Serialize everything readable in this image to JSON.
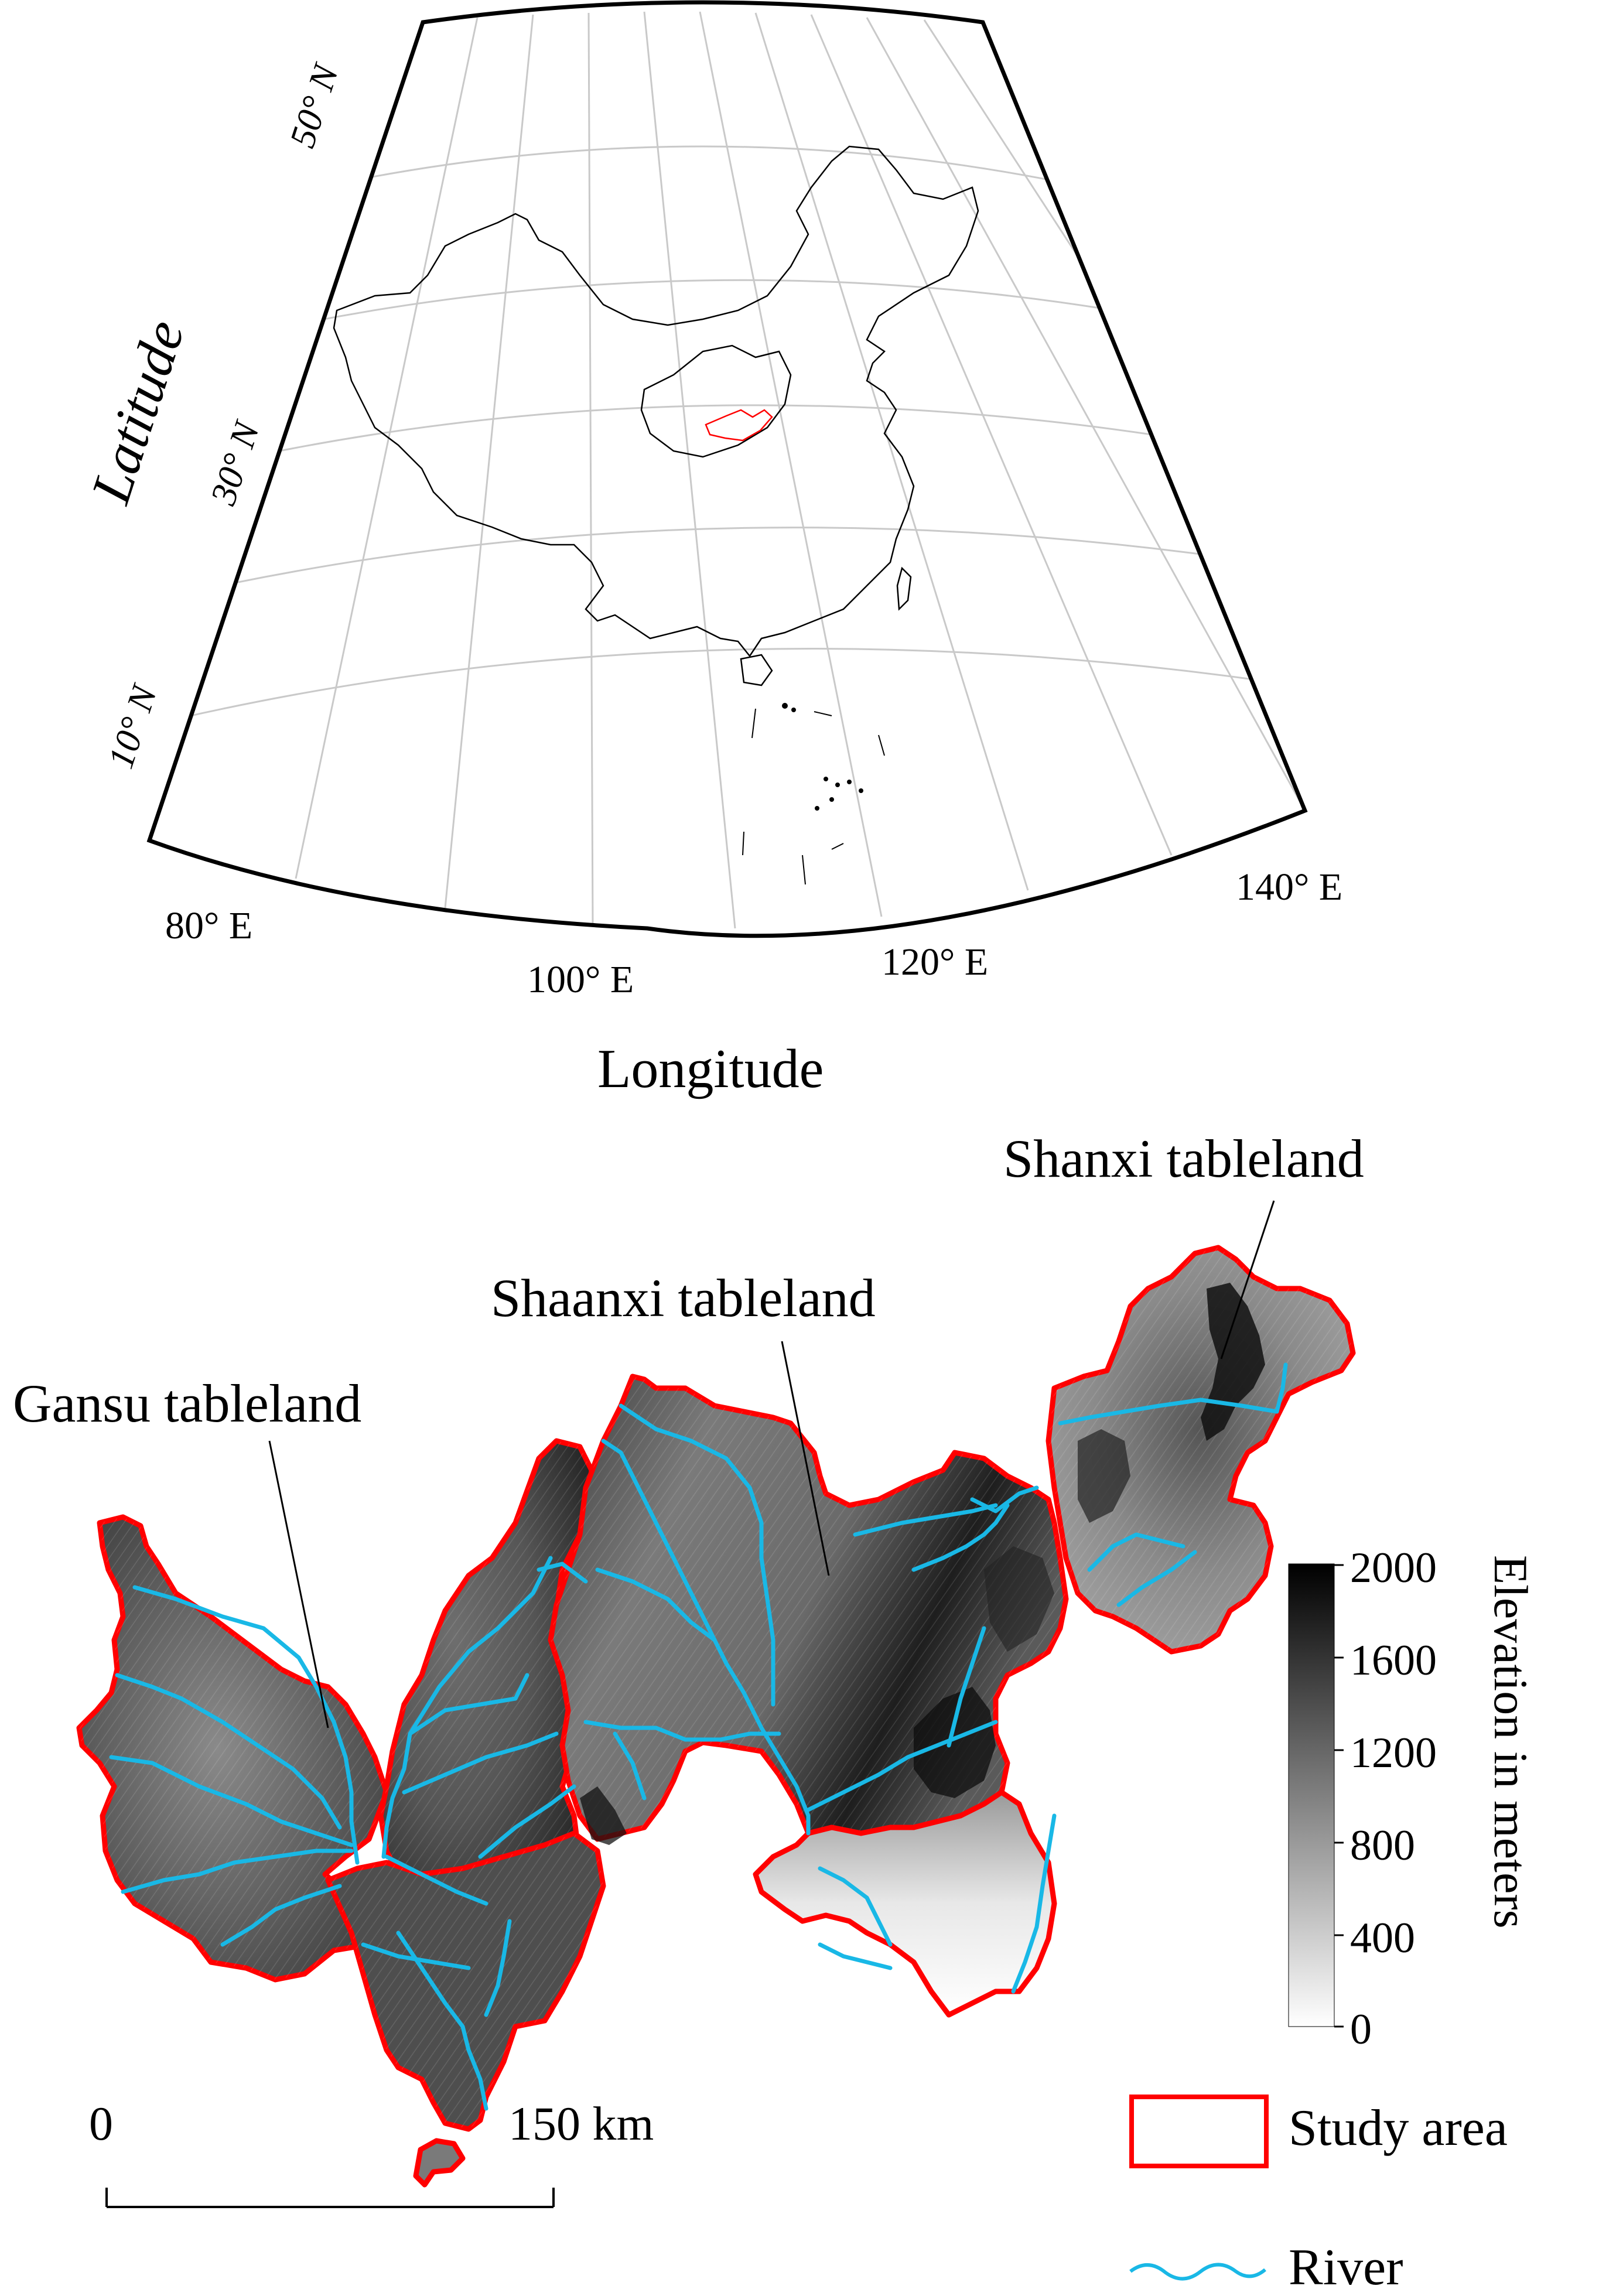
{
  "inset_map": {
    "axis_x_label": "Longitude",
    "axis_y_label": "Latitude",
    "lon_ticks": [
      "80° E",
      "100° E",
      "120° E",
      "140° E"
    ],
    "lat_ticks": [
      "10° N",
      "30° N",
      "50° N"
    ]
  },
  "study_map": {
    "regions": [
      {
        "name": "Gansu tableland"
      },
      {
        "name": "Shaanxi tableland"
      },
      {
        "name": "Shanxi tableland"
      }
    ],
    "colorbar": {
      "title": "Elevation in meters",
      "ticks": [
        "2000",
        "1600",
        "1200",
        "800",
        "400",
        "0"
      ],
      "min": 0,
      "max": 2000,
      "color_low": "#ffffff",
      "color_high": "#000000"
    },
    "legend": {
      "study_area_label": "Study area",
      "river_label": "River",
      "study_area_color": "#ff0000",
      "river_color": "#19b8e6"
    },
    "scalebar": {
      "start_label": "0",
      "end_label": "150 km"
    }
  }
}
